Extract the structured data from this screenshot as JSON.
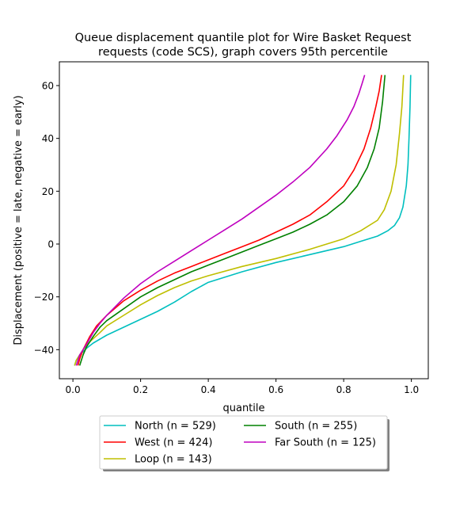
{
  "chart_data": {
    "type": "line",
    "title_lines": [
      "Queue displacement quantile plot for Wire Basket Request",
      "requests (code SCS), graph covers 95th percentile"
    ],
    "xlabel": "quantile",
    "ylabel": "Displacement (positive = late, negative = early)",
    "xlim": [
      -0.04,
      1.05
    ],
    "ylim": [
      -51,
      69
    ],
    "xticks": [
      0.0,
      0.2,
      0.4,
      0.6,
      0.8,
      1.0
    ],
    "xtick_labels": [
      "0.0",
      "0.2",
      "0.4",
      "0.6",
      "0.8",
      "1.0"
    ],
    "yticks": [
      -40,
      -20,
      0,
      20,
      40,
      60
    ],
    "ytick_labels": [
      "−40",
      "−20",
      "0",
      "20",
      "40",
      "60"
    ],
    "grid": false,
    "legend_position": "below plot, two columns",
    "series": [
      {
        "name": "North (n = 529)",
        "color": "#00bfbf",
        "x": [
          0.005,
          0.01,
          0.02,
          0.04,
          0.06,
          0.08,
          0.1,
          0.15,
          0.2,
          0.25,
          0.3,
          0.35,
          0.4,
          0.5,
          0.6,
          0.7,
          0.8,
          0.85,
          0.9,
          0.93,
          0.95,
          0.965,
          0.975,
          0.985,
          0.99,
          0.993,
          0.996,
          0.998
        ],
        "y": [
          -46,
          -44,
          -42,
          -39.5,
          -37.5,
          -36,
          -34.5,
          -31.5,
          -28.5,
          -25.5,
          -22,
          -18,
          -14.5,
          -10.5,
          -7,
          -4,
          -1,
          1,
          3,
          5,
          7,
          10,
          14,
          22,
          30,
          40,
          52,
          64
        ]
      },
      {
        "name": "West (n = 424)",
        "color": "#ff0000",
        "x": [
          0.015,
          0.02,
          0.03,
          0.05,
          0.07,
          0.1,
          0.15,
          0.2,
          0.25,
          0.3,
          0.35,
          0.4,
          0.45,
          0.5,
          0.55,
          0.6,
          0.65,
          0.7,
          0.75,
          0.8,
          0.83,
          0.86,
          0.88,
          0.895,
          0.905,
          0.912
        ],
        "y": [
          -46,
          -43.5,
          -40,
          -35,
          -31,
          -27,
          -21.5,
          -17.5,
          -14,
          -11,
          -8.5,
          -6,
          -3.5,
          -1,
          1.5,
          4.5,
          7.5,
          11,
          16,
          22,
          28,
          36,
          44,
          52,
          58,
          64
        ]
      },
      {
        "name": "Loop (n = 143)",
        "color": "#bfbf00",
        "x": [
          0.005,
          0.01,
          0.02,
          0.03,
          0.05,
          0.08,
          0.1,
          0.15,
          0.2,
          0.25,
          0.3,
          0.35,
          0.4,
          0.5,
          0.6,
          0.7,
          0.8,
          0.85,
          0.9,
          0.92,
          0.94,
          0.955,
          0.965,
          0.972,
          0.977
        ],
        "y": [
          -46,
          -44,
          -42,
          -40,
          -37,
          -33.5,
          -31,
          -27,
          -23,
          -19.5,
          -16.5,
          -14,
          -12,
          -8.5,
          -5.5,
          -2,
          2,
          5,
          9,
          13,
          20,
          30,
          42,
          52,
          64
        ]
      },
      {
        "name": "South (n = 255)",
        "color": "#008000",
        "x": [
          0.02,
          0.025,
          0.03,
          0.04,
          0.06,
          0.08,
          0.1,
          0.15,
          0.2,
          0.25,
          0.3,
          0.35,
          0.4,
          0.45,
          0.5,
          0.55,
          0.6,
          0.65,
          0.7,
          0.75,
          0.8,
          0.84,
          0.87,
          0.89,
          0.905,
          0.915,
          0.922
        ],
        "y": [
          -46,
          -44,
          -42,
          -39,
          -35,
          -31.5,
          -29,
          -24.5,
          -20,
          -16.5,
          -13.5,
          -10.5,
          -8,
          -5.5,
          -3,
          -0.5,
          2,
          4.5,
          7.5,
          11,
          16,
          22,
          29,
          36,
          44,
          54,
          64
        ]
      },
      {
        "name": "Far South (n = 125)",
        "color": "#bf00bf",
        "x": [
          0.01,
          0.015,
          0.02,
          0.04,
          0.06,
          0.08,
          0.1,
          0.15,
          0.2,
          0.25,
          0.3,
          0.35,
          0.4,
          0.45,
          0.5,
          0.55,
          0.6,
          0.65,
          0.7,
          0.75,
          0.78,
          0.81,
          0.83,
          0.845,
          0.855,
          0.862
        ],
        "y": [
          -46,
          -44,
          -42,
          -38,
          -33.5,
          -30,
          -27,
          -20.5,
          -15,
          -10.5,
          -6.5,
          -2.5,
          1.5,
          5.5,
          9.5,
          14,
          18.5,
          23.5,
          29,
          36,
          41,
          47,
          52,
          57,
          61,
          64
        ]
      }
    ]
  }
}
